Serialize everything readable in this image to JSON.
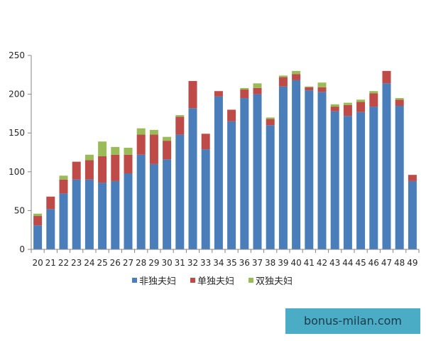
{
  "chart_data": {
    "type": "bar",
    "stacked": true,
    "categories": [
      "20",
      "21",
      "22",
      "23",
      "24",
      "25",
      "26",
      "27",
      "28",
      "29",
      "30",
      "31",
      "32",
      "33",
      "34",
      "35",
      "36",
      "37",
      "38",
      "39",
      "40",
      "41",
      "42",
      "43",
      "44",
      "45",
      "46",
      "47",
      "48",
      "49"
    ],
    "series": [
      {
        "name": "非独夫妇",
        "color": "#4a7ebb",
        "values": [
          31,
          52,
          72,
          90,
          90,
          86,
          88,
          98,
          122,
          110,
          116,
          148,
          182,
          129,
          197,
          165,
          195,
          200,
          160,
          210,
          218,
          205,
          203,
          178,
          172,
          177,
          184,
          214,
          185,
          88
        ]
      },
      {
        "name": "单独夫妇",
        "color": "#be4b48",
        "values": [
          12,
          16,
          18,
          23,
          25,
          34,
          34,
          24,
          26,
          38,
          24,
          23,
          35,
          20,
          7,
          15,
          11,
          8,
          8,
          12,
          8,
          4,
          6,
          6,
          14,
          13,
          17,
          16,
          8,
          8
        ]
      },
      {
        "name": "双独夫妇",
        "color": "#9bbb59",
        "values": [
          3,
          0,
          5,
          0,
          7,
          19,
          10,
          9,
          8,
          6,
          5,
          2,
          0,
          0,
          0,
          0,
          2,
          6,
          2,
          2,
          4,
          1,
          6,
          3,
          3,
          3,
          3,
          0,
          2,
          0
        ]
      }
    ],
    "ylim": [
      0,
      250
    ],
    "yticks": [
      0,
      50,
      100,
      150,
      200,
      250
    ],
    "grid": false,
    "legend_position": "bottom",
    "title": "",
    "xlabel": "",
    "ylabel": ""
  },
  "watermark": {
    "text": "bonus-milan.com",
    "background": "#4bacc6"
  }
}
